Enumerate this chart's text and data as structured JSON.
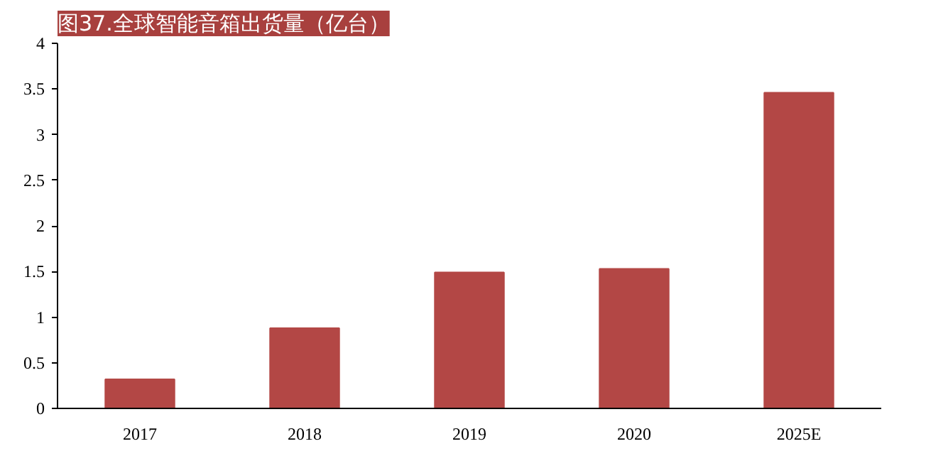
{
  "chart_data": {
    "type": "bar",
    "title": "图37.全球智能音箱出货量（亿台）",
    "categories": [
      "2017",
      "2018",
      "2019",
      "2020",
      "2025E"
    ],
    "values": [
      0.32,
      0.88,
      1.49,
      1.53,
      3.46
    ],
    "color": "#b34745",
    "ylim": [
      0,
      4
    ],
    "yticks": [
      0,
      0.5,
      1,
      1.5,
      2,
      2.5,
      3,
      3.5,
      4
    ],
    "grid": false
  }
}
